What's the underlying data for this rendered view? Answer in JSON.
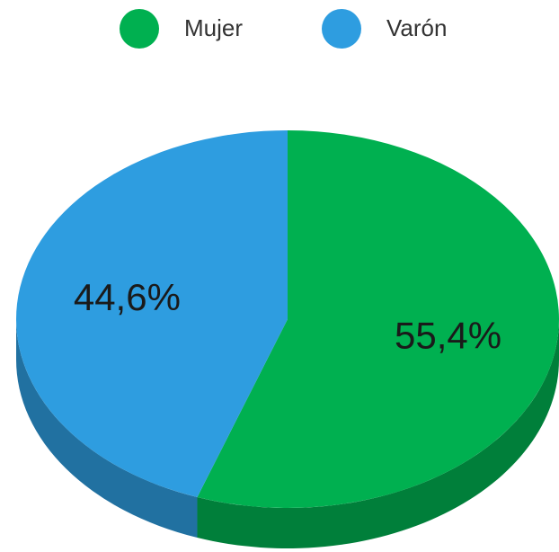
{
  "chart_data": {
    "type": "pie",
    "categories": [
      "Mujer",
      "Varón"
    ],
    "values": [
      55.4,
      44.6
    ],
    "value_labels": [
      "55,4%",
      "44,6%"
    ],
    "colors": [
      "#00b050",
      "#2e9de0"
    ],
    "legend": "top"
  }
}
